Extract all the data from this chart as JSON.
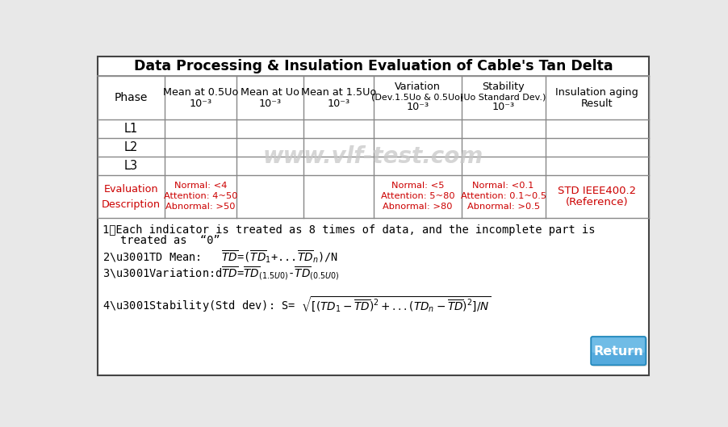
{
  "title": "Data Processing & Insulation Evaluation of Cable's Tan Delta",
  "bg_color": "#e8e8e8",
  "white": "#ffffff",
  "border_color": "#444444",
  "table_line_color": "#aaaaaa",
  "red": "#cc0000",
  "title_fontsize": 12.5,
  "watermark": "www.vlf-test.com",
  "col_headers_line1": [
    "Phase",
    "Mean at 0.5Uo",
    "Mean at Uo",
    "Mean at 1.5Uo",
    "Variation",
    "Stability",
    "Insulation aging"
  ],
  "col_headers_line2": [
    "",
    "10⁻³",
    "10⁻³",
    "10⁻³",
    "(Dev.1.5Uo & 0.5Uo)",
    "(Uo Standard Dev.)",
    "Result"
  ],
  "col_headers_line3": [
    "",
    "",
    "",
    "",
    "10⁻³",
    "10⁻³",
    ""
  ],
  "rows": [
    "L1",
    "L2",
    "L3"
  ],
  "eval_col1_lines": [
    "Normal: <4",
    "Attention: 4~50",
    "Abnormal: >50"
  ],
  "eval_col4_lines": [
    "Normal: <5",
    "Attention: 5~80",
    "Abnormal: >80"
  ],
  "eval_col5_lines": [
    "Normal: <0.1",
    "Attention: 0.1~0.5",
    "Abnormal: >0.5"
  ],
  "eval_col6_lines": [
    "STD IEEE400.2",
    "(Reference)"
  ],
  "return_btn_text": "Return",
  "return_btn_color": "#55aadd",
  "return_btn_light": "#88ccee"
}
